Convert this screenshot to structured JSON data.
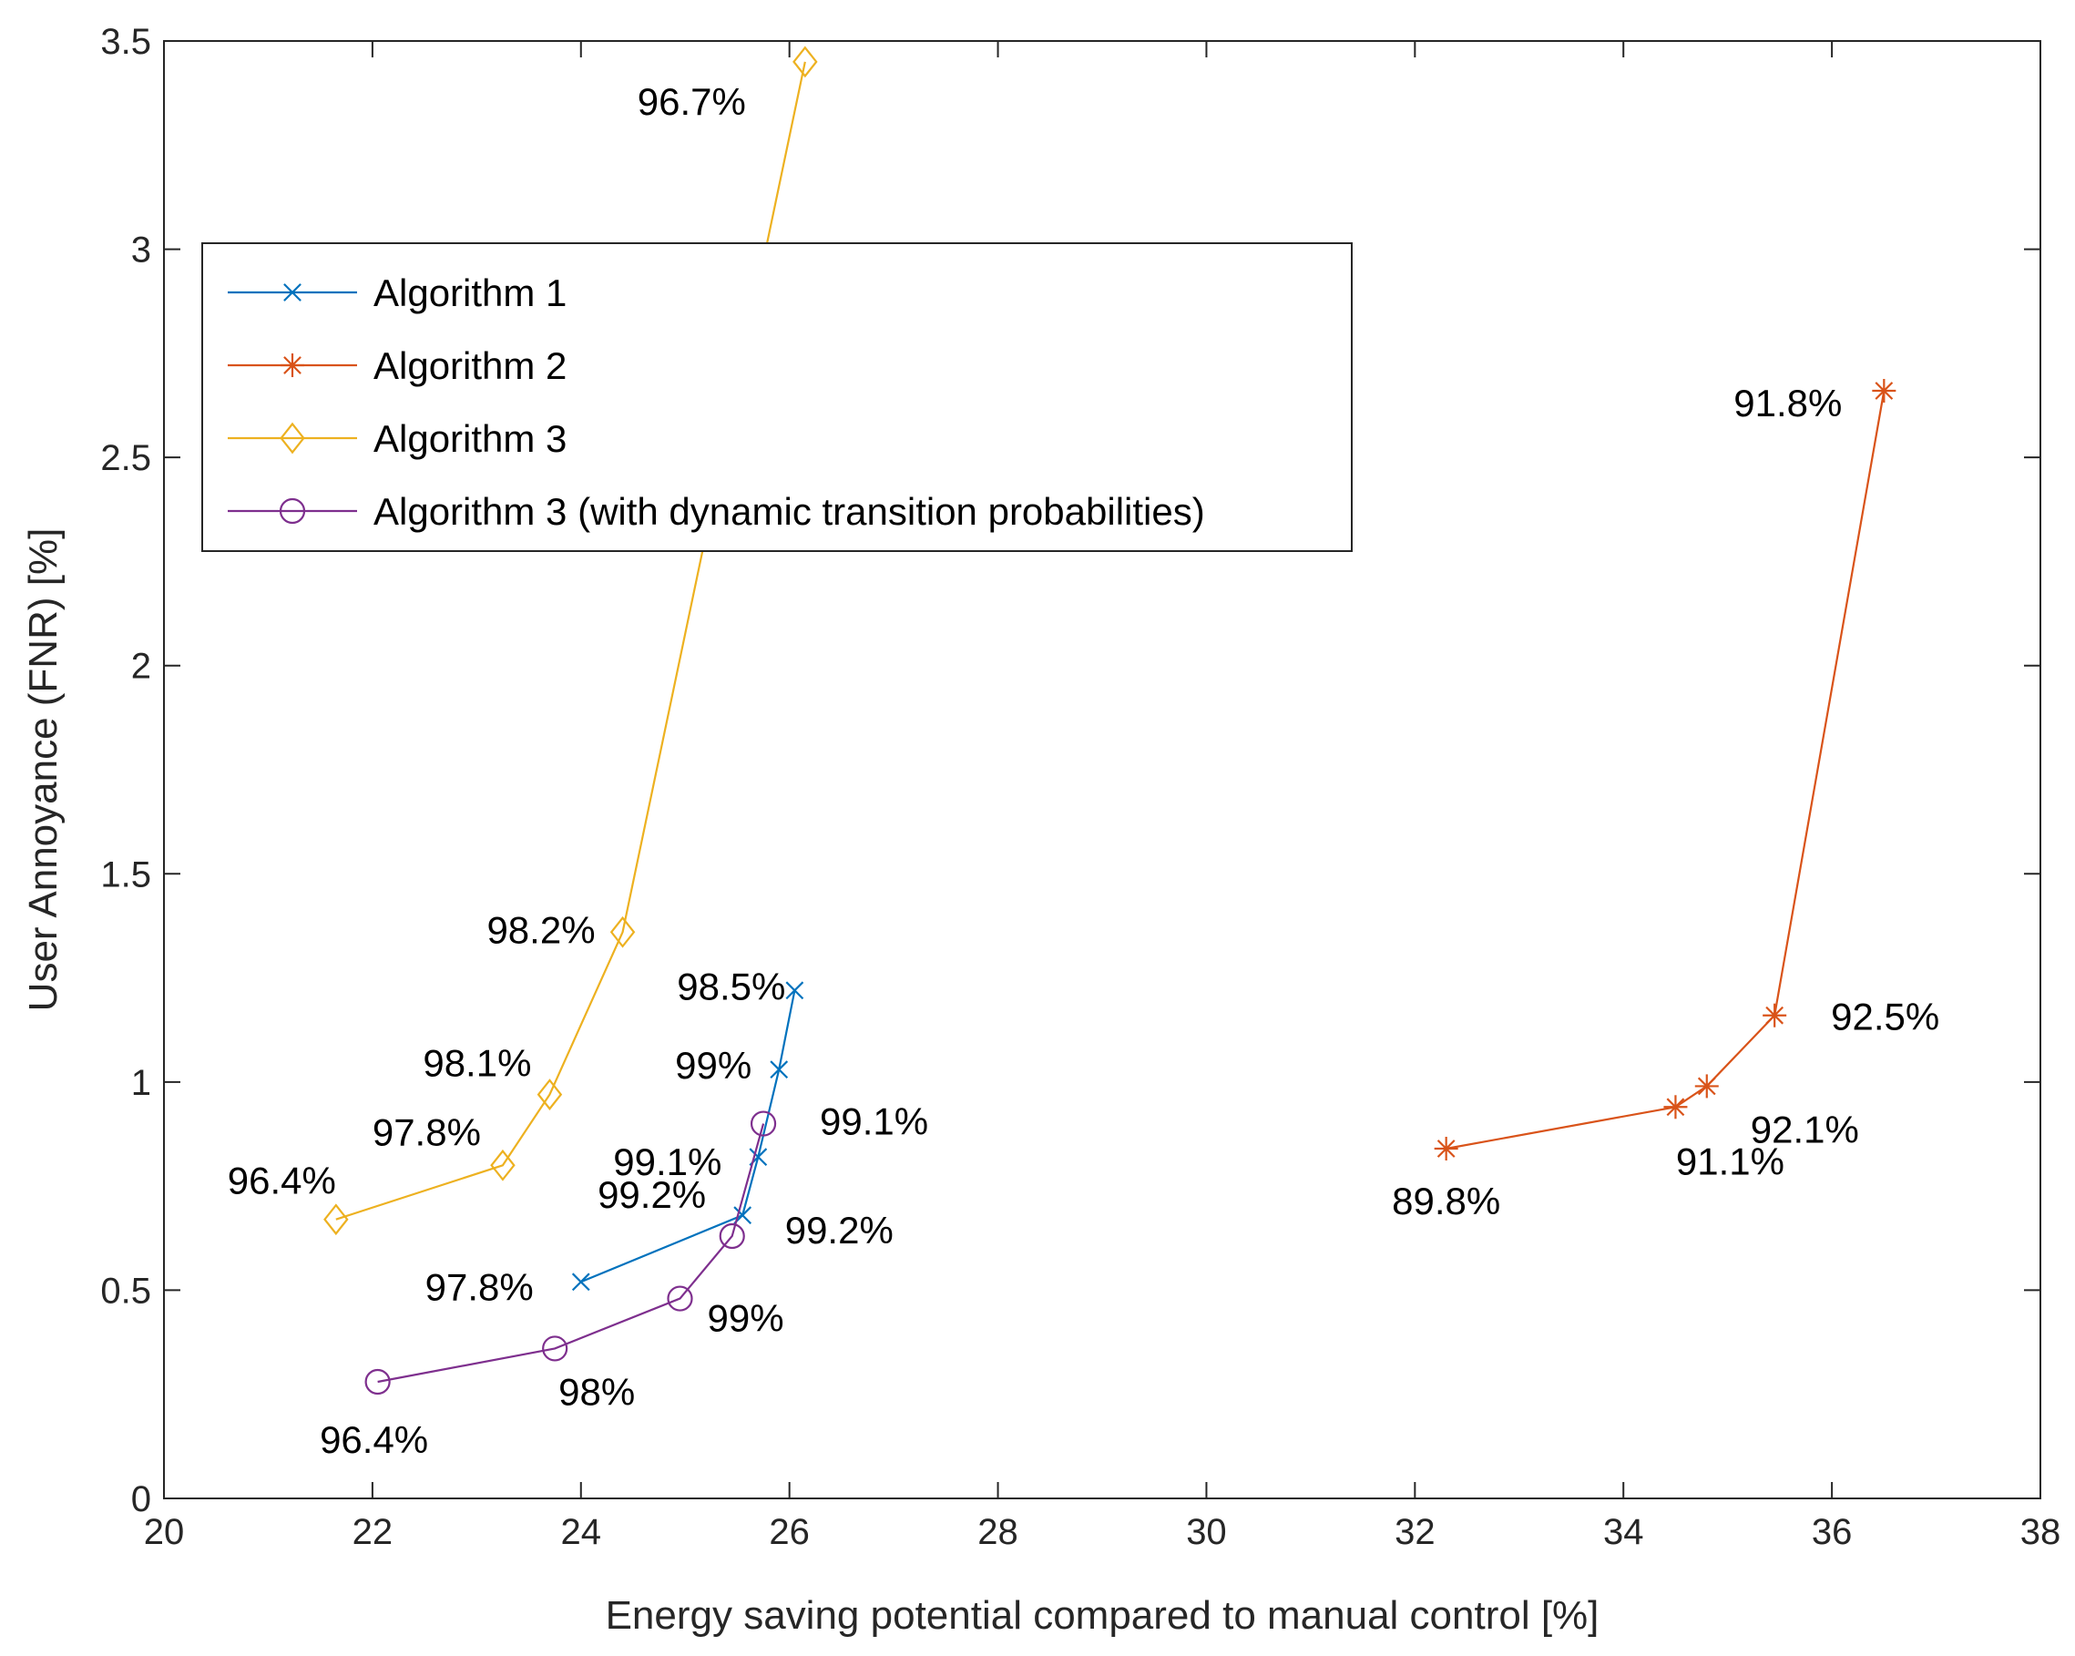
{
  "chart_data": {
    "type": "line",
    "title": "",
    "xlabel": "Energy saving potential compared to manual control [%]",
    "ylabel": "User Annoyance (FNR) [%]",
    "xlim": [
      20,
      38
    ],
    "ylim": [
      0,
      3.5
    ],
    "xticks": [
      20,
      22,
      24,
      26,
      28,
      30,
      32,
      34,
      36,
      38
    ],
    "xtick_labels": [
      "20",
      "22",
      "24",
      "26",
      "28",
      "30",
      "32",
      "34",
      "36",
      "38"
    ],
    "yticks": [
      0,
      0.5,
      1,
      1.5,
      2,
      2.5,
      3,
      3.5
    ],
    "ytick_labels": [
      "0",
      "0.5",
      "1",
      "1.5",
      "2",
      "2.5",
      "3",
      "3.5"
    ],
    "grid": false,
    "legend_position": "upper-left",
    "series": [
      {
        "name": "Algorithm 1",
        "color": "#0072BD",
        "marker": "x",
        "x": [
          24.0,
          25.55,
          25.7,
          25.9,
          26.05
        ],
        "y": [
          0.52,
          0.68,
          0.82,
          1.03,
          1.22
        ],
        "point_labels": [
          "97.8%",
          "99.2%",
          "99.1%",
          "99%",
          "98.5%"
        ]
      },
      {
        "name": "Algorithm 2",
        "color": "#D95319",
        "marker": "asterisk",
        "x": [
          32.3,
          34.5,
          34.8,
          35.45,
          36.5
        ],
        "y": [
          0.84,
          0.94,
          0.99,
          1.16,
          2.66
        ],
        "point_labels": [
          "89.8%",
          "91.1%",
          "92.1%",
          "92.5%",
          "91.8%"
        ]
      },
      {
        "name": "Algorithm 3",
        "color": "#EDB120",
        "marker": "diamond",
        "x": [
          21.65,
          23.25,
          23.7,
          24.4,
          26.15
        ],
        "y": [
          0.67,
          0.8,
          0.97,
          1.36,
          3.45
        ],
        "point_labels": [
          "96.4%",
          "97.8%",
          "98.1%",
          "98.2%",
          "96.7%"
        ]
      },
      {
        "name": "Algorithm 3 (with dynamic transition probabilities)",
        "color": "#7E2F8E",
        "marker": "circle",
        "x": [
          22.05,
          23.75,
          24.95,
          25.45,
          25.75
        ],
        "y": [
          0.28,
          0.36,
          0.48,
          0.63,
          0.9
        ],
        "point_labels": [
          "96.4%",
          "98%",
          "99%",
          "99.2%",
          "99.1%"
        ]
      }
    ]
  }
}
